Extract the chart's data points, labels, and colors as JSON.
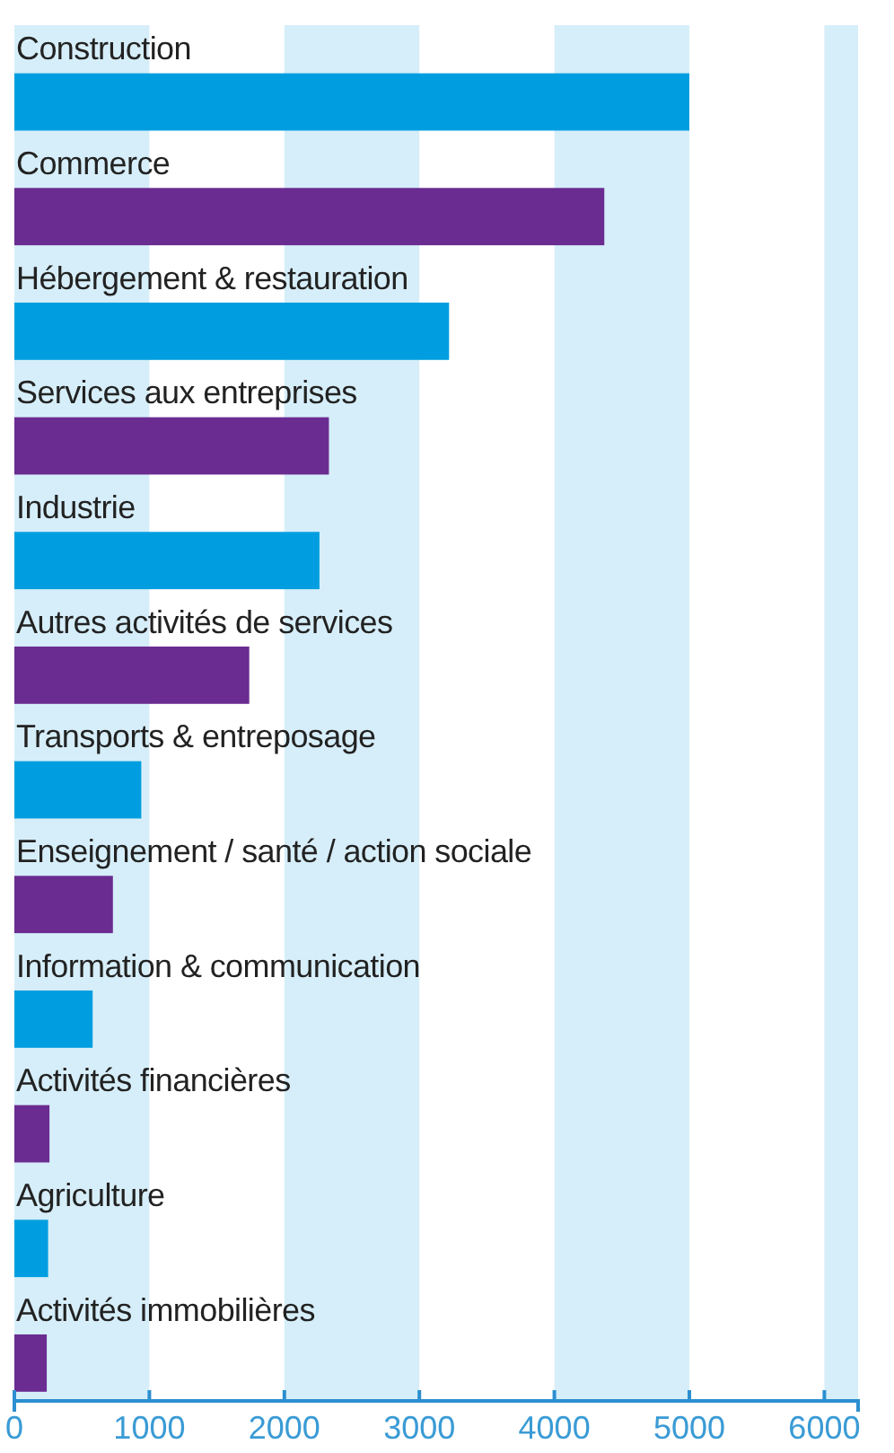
{
  "chart_data": {
    "type": "bar",
    "orientation": "horizontal",
    "categories": [
      "Construction",
      "Commerce",
      "Hébergement & restauration",
      "Services aux entreprises",
      "Industrie",
      "Autres activités de services",
      "Transports & entreposage",
      "Enseignement / santé / action sociale",
      "Information & communication",
      "Activités financières",
      "Agriculture",
      "Activités immobilières"
    ],
    "values": [
      5000,
      4370,
      3220,
      2330,
      2260,
      1740,
      940,
      730,
      580,
      260,
      250,
      240
    ],
    "colors": [
      "#009ee0",
      "#6a2c91",
      "#009ee0",
      "#6a2c91",
      "#009ee0",
      "#6a2c91",
      "#009ee0",
      "#6a2c91",
      "#009ee0",
      "#6a2c91",
      "#009ee0",
      "#6a2c91"
    ],
    "xlim": [
      0,
      6250
    ],
    "xticks": [
      0,
      1000,
      2000,
      3000,
      4000,
      5000,
      6000
    ],
    "bands": [
      {
        "axis": "x",
        "from": 0,
        "to": 1000,
        "color": "#d6eef9"
      },
      {
        "axis": "x",
        "from": 2000,
        "to": 3000,
        "color": "#d6eef9"
      },
      {
        "axis": "x",
        "from": 4000,
        "to": 5000,
        "color": "#d6eef9"
      },
      {
        "axis": "x",
        "from": 6000,
        "to": 6250,
        "color": "#d6eef9"
      }
    ]
  }
}
